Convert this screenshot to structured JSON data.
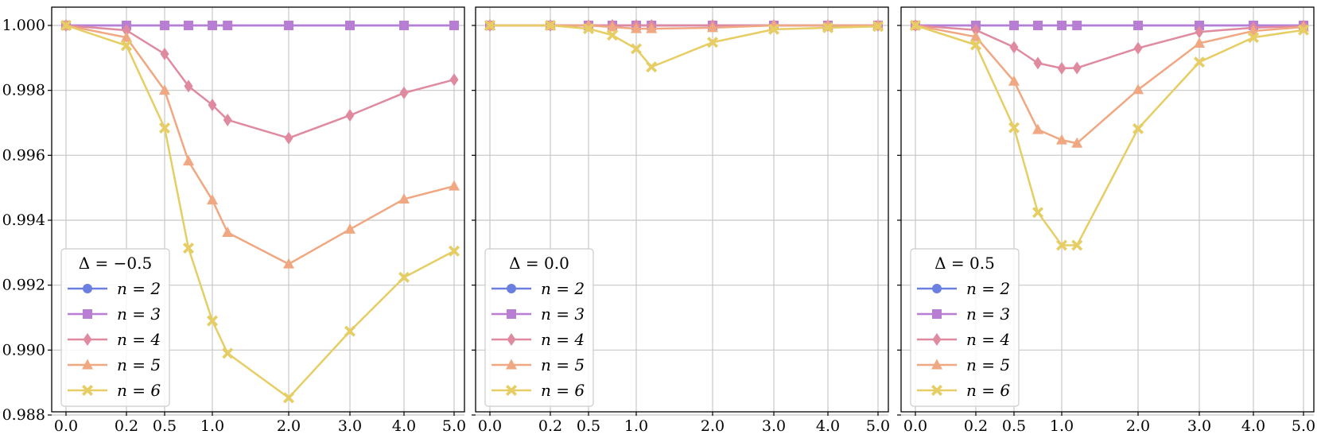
{
  "chart_data": [
    {
      "type": "line",
      "x": [
        0.0,
        0.2,
        0.5,
        0.75,
        1.0,
        1.2,
        2.0,
        3.0,
        4.0,
        5.0
      ],
      "xticks": [
        "0.0",
        "0.2",
        "0.5",
        "1.0",
        "2.0",
        "3.0",
        "4.0",
        "5.0"
      ],
      "yticks": [
        "1.000",
        "0.998",
        "0.996",
        "0.994",
        "0.992",
        "0.990",
        "0.988"
      ],
      "ylim": [
        0.9878,
        1.0006
      ],
      "legend_title": "Δ = −0.5",
      "legend_position": "lower-left",
      "grid": true,
      "series": [
        {
          "name": "n = 2",
          "color": "#6b7fe0",
          "marker": "circle",
          "values": [
            1.0,
            1.0,
            1.0,
            1.0,
            1.0,
            1.0,
            1.0,
            1.0,
            1.0,
            1.0
          ]
        },
        {
          "name": "n = 3",
          "color": "#b87ed4",
          "marker": "square",
          "values": [
            1.0,
            1.0,
            1.0,
            1.0,
            1.0,
            1.0,
            1.0,
            1.0,
            1.0,
            1.0
          ]
        },
        {
          "name": "n = 4",
          "color": "#e08aa0",
          "marker": "diamond",
          "values": [
            1.0,
            0.99985,
            0.99912,
            0.99813,
            0.99755,
            0.99709,
            0.99653,
            0.99723,
            0.99792,
            0.99833
          ]
        },
        {
          "name": "n = 5",
          "color": "#f0a882",
          "marker": "triangle",
          "values": [
            1.0,
            0.99963,
            0.998,
            0.99582,
            0.99462,
            0.99362,
            0.99265,
            0.99372,
            0.99465,
            0.99505
          ]
        },
        {
          "name": "n = 6",
          "color": "#e6cd64",
          "marker": "x",
          "values": [
            1.0,
            0.99938,
            0.99684,
            0.99314,
            0.9909,
            0.9899,
            0.98853,
            0.99058,
            0.99224,
            0.99305
          ]
        }
      ]
    },
    {
      "type": "line",
      "x": [
        0.0,
        0.2,
        0.5,
        0.75,
        1.0,
        1.2,
        2.0,
        3.0,
        4.0,
        5.0
      ],
      "xticks": [
        "0.0",
        "0.2",
        "0.5",
        "1.0",
        "2.0",
        "3.0",
        "4.0",
        "5.0"
      ],
      "yticks": [],
      "ylim": [
        0.9878,
        1.0006
      ],
      "legend_title": "Δ = 0.0",
      "legend_position": "lower-left",
      "grid": true,
      "series": [
        {
          "name": "n = 2",
          "color": "#6b7fe0",
          "marker": "circle",
          "values": [
            1.0,
            1.0,
            1.0,
            1.0,
            1.0,
            1.0,
            1.0,
            1.0,
            1.0,
            1.0
          ]
        },
        {
          "name": "n = 3",
          "color": "#b87ed4",
          "marker": "square",
          "values": [
            1.0,
            1.0,
            1.0,
            1.0,
            1.0,
            1.0,
            1.0,
            1.0,
            1.0,
            1.0
          ]
        },
        {
          "name": "n = 4",
          "color": "#e08aa0",
          "marker": "diamond",
          "values": [
            1.0,
            1.0,
            1.0,
            1.0,
            1.0,
            1.0,
            1.0,
            1.0,
            1.0,
            1.0
          ]
        },
        {
          "name": "n = 5",
          "color": "#f0a882",
          "marker": "triangle",
          "values": [
            1.0,
            1.0,
            1.0,
            0.99995,
            0.9999,
            0.9999,
            0.99993,
            1.0,
            1.0,
            1.0
          ]
        },
        {
          "name": "n = 6",
          "color": "#e6cd64",
          "marker": "x",
          "values": [
            1.0,
            1.0,
            0.9999,
            0.9997,
            0.99928,
            0.99872,
            0.99948,
            0.99988,
            0.99993,
            0.99997
          ]
        }
      ]
    },
    {
      "type": "line",
      "x": [
        0.0,
        0.2,
        0.5,
        0.75,
        1.0,
        1.2,
        2.0,
        3.0,
        4.0,
        5.0
      ],
      "xticks": [
        "0.0",
        "0.2",
        "0.5",
        "1.0",
        "2.0",
        "3.0",
        "4.0",
        "5.0"
      ],
      "yticks": [],
      "ylim": [
        0.9878,
        1.0006
      ],
      "legend_title": "Δ = 0.5",
      "legend_position": "lower-left",
      "grid": true,
      "series": [
        {
          "name": "n = 2",
          "color": "#6b7fe0",
          "marker": "circle",
          "values": [
            1.0,
            1.0,
            1.0,
            1.0,
            1.0,
            1.0,
            1.0,
            1.0,
            1.0,
            1.0
          ]
        },
        {
          "name": "n = 3",
          "color": "#b87ed4",
          "marker": "square",
          "values": [
            1.0,
            1.0,
            1.0,
            1.0,
            1.0,
            1.0,
            1.0,
            1.0,
            1.0,
            1.0
          ]
        },
        {
          "name": "n = 4",
          "color": "#e08aa0",
          "marker": "diamond",
          "values": [
            1.0,
            0.99986,
            0.99933,
            0.99884,
            0.99868,
            0.99869,
            0.9993,
            0.9998,
            0.99993,
            0.99998
          ]
        },
        {
          "name": "n = 5",
          "color": "#f0a882",
          "marker": "triangle",
          "values": [
            1.0,
            0.99965,
            0.99828,
            0.99679,
            0.99647,
            0.99637,
            0.99802,
            0.99945,
            0.99983,
            0.99995
          ]
        },
        {
          "name": "n = 6",
          "color": "#e6cd64",
          "marker": "x",
          "values": [
            1.0,
            0.9994,
            0.99685,
            0.99424,
            0.99323,
            0.99323,
            0.99682,
            0.99887,
            0.99963,
            0.99986
          ]
        }
      ]
    }
  ]
}
